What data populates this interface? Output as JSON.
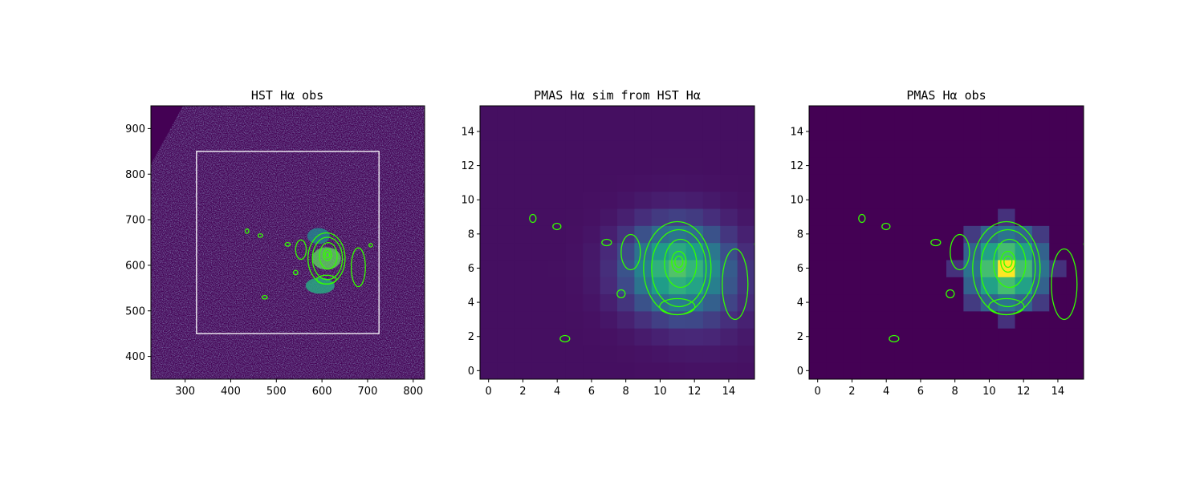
{
  "chart_data": [
    {
      "type": "heatmap",
      "title": "HST Hα obs",
      "xlim": [
        225,
        825
      ],
      "ylim": [
        350,
        950
      ],
      "xticks": [
        300,
        400,
        500,
        600,
        700,
        800
      ],
      "yticks": [
        400,
        500,
        600,
        700,
        800,
        900
      ],
      "colormap": "viridis",
      "contour_color": "#33ff00",
      "overlay_box": {
        "x": [
          325,
          725
        ],
        "y": [
          450,
          850
        ],
        "color": "#ffffff"
      },
      "source_center": [
        610,
        615
      ]
    },
    {
      "type": "heatmap",
      "title": "PMAS Hα sim from HST Hα",
      "xlim": [
        -0.5,
        15.5
      ],
      "ylim": [
        -0.5,
        15.5
      ],
      "xticks": [
        0,
        2,
        4,
        6,
        8,
        10,
        12,
        14
      ],
      "yticks": [
        0,
        2,
        4,
        6,
        8,
        10,
        12,
        14
      ],
      "colormap": "viridis",
      "contour_color": "#33ff00",
      "source_center": [
        11,
        6
      ]
    },
    {
      "type": "heatmap",
      "title": "PMAS Hα obs",
      "xlim": [
        -0.5,
        15.5
      ],
      "ylim": [
        -0.5,
        15.5
      ],
      "xticks": [
        0,
        2,
        4,
        6,
        8,
        10,
        12,
        14
      ],
      "yticks": [
        0,
        2,
        4,
        6,
        8,
        10,
        12,
        14
      ],
      "colormap": "viridis",
      "contour_color": "#33ff00",
      "source_center": [
        11,
        6
      ]
    }
  ]
}
